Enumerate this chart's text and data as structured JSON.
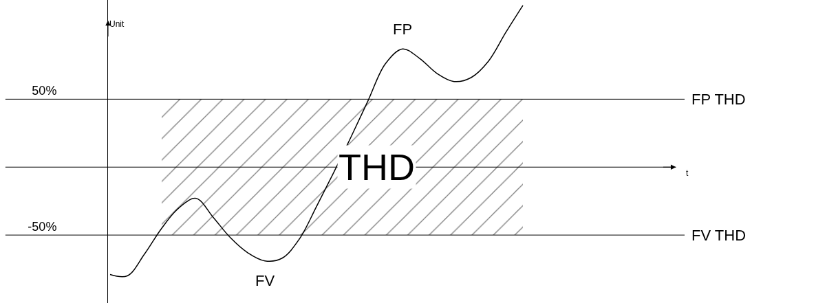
{
  "chart_data": {
    "type": "line",
    "categories": [
      null,
      null,
      null,
      null,
      null,
      null,
      null,
      null,
      null,
      null,
      null,
      null,
      null,
      null,
      null,
      null,
      null,
      null,
      null,
      null,
      null,
      null,
      null,
      null,
      null
    ],
    "series": [
      {
        "color": "#000000",
        "values": [
          -79,
          -80,
          -64,
          -45,
          -30,
          -23,
          -37,
          -52,
          -63,
          -69,
          -67,
          -53,
          -29,
          -4,
          22,
          49,
          76,
          87,
          80,
          69,
          63,
          66,
          78,
          99,
          119
        ]
      }
    ],
    "ylim": [
      -100,
      123
    ],
    "yticks": [
      {
        "value": 50,
        "label": "50%"
      },
      {
        "value": -50,
        "label": "-50%"
      }
    ],
    "ref_lines": [
      {
        "axis": "y",
        "value": 50,
        "label": "FP THD",
        "color": "#000000"
      },
      {
        "axis": "y",
        "value": -50,
        "label": "FV THD",
        "color": "#000000"
      }
    ],
    "bands": [
      {
        "axis": "y",
        "from": -50,
        "to": 50,
        "label": "THD",
        "color": "#000000"
      }
    ],
    "annotations": [
      "Unit",
      "FP",
      "FV",
      "t"
    ],
    "marker": "none",
    "line_style": "solid",
    "tick_labels": "y"
  }
}
